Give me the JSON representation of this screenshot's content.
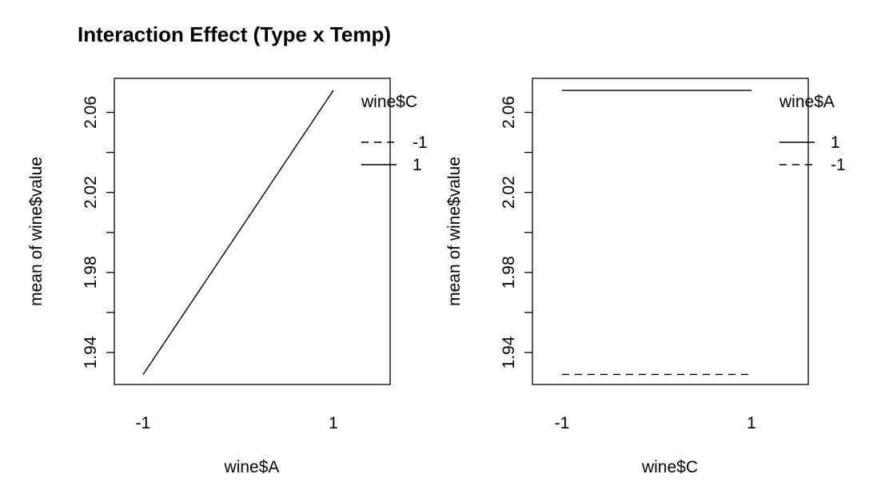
{
  "title": "Interaction Effect (Type x Temp)",
  "chart_data": [
    {
      "type": "line",
      "title": "",
      "xlabel": "wine$A",
      "ylabel": "mean of  wine$value",
      "categories": [
        "-1",
        "1"
      ],
      "ylim": [
        1.924,
        2.077
      ],
      "yticks": [
        1.94,
        1.96,
        1.98,
        2.0,
        2.02,
        2.04,
        2.06
      ],
      "ytick_labels": [
        "1.94",
        "",
        "1.98",
        "",
        "2.02",
        "",
        "2.06"
      ],
      "legend": {
        "title": "wine$C",
        "placement": "right",
        "entries": [
          {
            "label": "-1",
            "dash": "dashed"
          },
          {
            "label": "1",
            "dash": "solid"
          }
        ]
      },
      "series": [
        {
          "name": "-1",
          "values": [
            null,
            null
          ],
          "dash": "dashed"
        },
        {
          "name": "1",
          "values": [
            1.929,
            2.071
          ],
          "dash": "solid"
        }
      ]
    },
    {
      "type": "line",
      "title": "",
      "xlabel": "wine$C",
      "ylabel": "mean of  wine$value",
      "categories": [
        "-1",
        "1"
      ],
      "ylim": [
        1.924,
        2.077
      ],
      "yticks": [
        1.94,
        1.96,
        1.98,
        2.0,
        2.02,
        2.04,
        2.06
      ],
      "ytick_labels": [
        "1.94",
        "",
        "1.98",
        "",
        "2.02",
        "",
        "2.06"
      ],
      "legend": {
        "title": "wine$A",
        "placement": "right",
        "entries": [
          {
            "label": "1",
            "dash": "solid"
          },
          {
            "label": "-1",
            "dash": "dashed"
          }
        ]
      },
      "series": [
        {
          "name": "1",
          "values": [
            2.071,
            2.071
          ],
          "dash": "solid"
        },
        {
          "name": "-1",
          "values": [
            1.929,
            1.929
          ],
          "dash": "dashed"
        }
      ]
    }
  ]
}
